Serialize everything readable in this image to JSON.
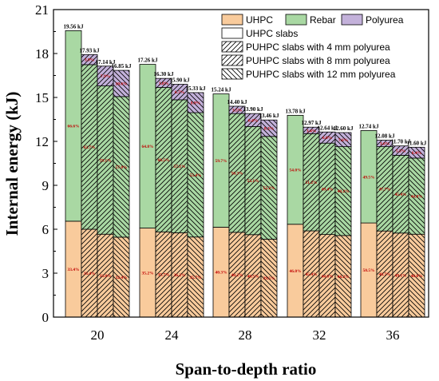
{
  "chart_data": {
    "type": "bar",
    "stacked": true,
    "title": "",
    "xlabel": "Span-to-depth ratio",
    "ylabel": "Internal energy (kJ)",
    "ylim": [
      0,
      21
    ],
    "yticks": [
      "0",
      "3",
      "6",
      "9",
      "12",
      "15",
      "18",
      "21"
    ],
    "categories": [
      "20",
      "24",
      "28",
      "32",
      "36"
    ],
    "slab_types": [
      "UHPC slabs",
      "PUHPC slabs with 4 mm polyurea",
      "PUHPC slabs with 8 mm polyurea",
      "PUHPC slabs with 12 mm polyurea"
    ],
    "components": [
      {
        "name": "UHPC",
        "color": "#f9cb9c"
      },
      {
        "name": "Rebar",
        "color": "#a9d8a3"
      },
      {
        "name": "Polyurea",
        "color": "#c3b1da"
      }
    ],
    "groups": [
      {
        "category": "20",
        "bars": [
          {
            "total": 19.56,
            "total_label": "19.56 kJ",
            "uhpc": 6.55,
            "rebar": 13.01,
            "polyurea": 0,
            "uhpc_pct": "33.4%",
            "rebar_pct": "66.6%",
            "poly_pct": ""
          },
          {
            "total": 17.93,
            "total_label": "17.93 kJ",
            "uhpc": 6.0,
            "rebar": 11.24,
            "polyurea": 0.69,
            "uhpc_pct": "33.4%",
            "rebar_pct": "62.7%",
            "poly_pct": "3.9%"
          },
          {
            "total": 17.14,
            "total_label": "17.14 kJ",
            "uhpc": 5.66,
            "rebar": 10.13,
            "polyurea": 1.35,
            "uhpc_pct": "33.0%",
            "rebar_pct": "59.1%",
            "poly_pct": "7.9%"
          },
          {
            "total": 16.85,
            "total_label": "16.85 kJ",
            "uhpc": 5.46,
            "rebar": 9.6,
            "polyurea": 1.79,
            "uhpc_pct": "32.4%",
            "rebar_pct": "57.0%",
            "poly_pct": "10.6%"
          }
        ]
      },
      {
        "category": "24",
        "bars": [
          {
            "total": 17.26,
            "total_label": "17.26 kJ",
            "uhpc": 6.08,
            "rebar": 11.18,
            "polyurea": 0,
            "uhpc_pct": "35.2%",
            "rebar_pct": "64.8%",
            "poly_pct": ""
          },
          {
            "total": 16.3,
            "total_label": "16.30 kJ",
            "uhpc": 5.82,
            "rebar": 9.86,
            "polyurea": 0.62,
            "uhpc_pct": "35.7%",
            "rebar_pct": "60.5%",
            "poly_pct": "3.8%"
          },
          {
            "total": 15.9,
            "total_label": "15.90 kJ",
            "uhpc": 5.76,
            "rebar": 9.08,
            "polyurea": 1.06,
            "uhpc_pct": "36.2%",
            "rebar_pct": "57.1%",
            "poly_pct": "6.7%"
          },
          {
            "total": 15.33,
            "total_label": "15.33 kJ",
            "uhpc": 5.47,
            "rebar": 8.49,
            "polyurea": 1.37,
            "uhpc_pct": "35.7%",
            "rebar_pct": "55.4%",
            "poly_pct": "8.9%"
          }
        ]
      },
      {
        "category": "28",
        "bars": [
          {
            "total": 15.24,
            "total_label": "15.24 kJ",
            "uhpc": 6.14,
            "rebar": 9.1,
            "polyurea": 0,
            "uhpc_pct": "40.3%",
            "rebar_pct": "59.7%",
            "poly_pct": ""
          },
          {
            "total": 14.4,
            "total_label": "14.40 kJ",
            "uhpc": 5.79,
            "rebar": 8.11,
            "polyurea": 0.5,
            "uhpc_pct": "40.2%",
            "rebar_pct": "56.3%",
            "poly_pct": "3.5%"
          },
          {
            "total": 13.9,
            "total_label": "13.90 kJ",
            "uhpc": 5.63,
            "rebar": 7.38,
            "polyurea": 0.89,
            "uhpc_pct": "40.5%",
            "rebar_pct": "53.1%",
            "poly_pct": "6.4%"
          },
          {
            "total": 13.46,
            "total_label": "13.46 kJ",
            "uhpc": 5.32,
            "rebar": 7.02,
            "polyurea": 1.12,
            "uhpc_pct": "39.5%",
            "rebar_pct": "52.2%",
            "poly_pct": "8.3%"
          }
        ]
      },
      {
        "category": "32",
        "bars": [
          {
            "total": 13.78,
            "total_label": "13.78 kJ",
            "uhpc": 6.34,
            "rebar": 7.44,
            "polyurea": 0,
            "uhpc_pct": "46.0%",
            "rebar_pct": "54.0%",
            "poly_pct": ""
          },
          {
            "total": 12.97,
            "total_label": "12.97 kJ",
            "uhpc": 5.89,
            "rebar": 6.64,
            "polyurea": 0.44,
            "uhpc_pct": "45.4%",
            "rebar_pct": "51.2%",
            "poly_pct": "3.4%"
          },
          {
            "total": 12.64,
            "total_label": "12.64 kJ",
            "uhpc": 5.64,
            "rebar": 6.24,
            "polyurea": 0.76,
            "uhpc_pct": "44.6%",
            "rebar_pct": "49.4%",
            "poly_pct": "6.0%"
          },
          {
            "total": 12.6,
            "total_label": "12.60 kJ",
            "uhpc": 5.57,
            "rebar": 6.07,
            "polyurea": 0.96,
            "uhpc_pct": "44.2%",
            "rebar_pct": "48.2%",
            "poly_pct": "7.6%"
          }
        ]
      },
      {
        "category": "36",
        "bars": [
          {
            "total": 12.74,
            "total_label": "12.74 kJ",
            "uhpc": 6.43,
            "rebar": 6.31,
            "polyurea": 0,
            "uhpc_pct": "50.5%",
            "rebar_pct": "49.5%",
            "poly_pct": ""
          },
          {
            "total": 12.08,
            "total_label": "12.08 kJ",
            "uhpc": 5.88,
            "rebar": 5.76,
            "polyurea": 0.44,
            "uhpc_pct": "48.7%",
            "rebar_pct": "47.7%",
            "poly_pct": "3.6%"
          },
          {
            "total": 11.7,
            "total_label": "11.70 kJ",
            "uhpc": 5.74,
            "rebar": 5.31,
            "polyurea": 0.64,
            "uhpc_pct": "49.1%",
            "rebar_pct": "45.4%",
            "poly_pct": "5.5%"
          },
          {
            "total": 11.6,
            "total_label": "11.60 kJ",
            "uhpc": 5.66,
            "rebar": 5.2,
            "polyurea": 0.74,
            "uhpc_pct": "48.8%",
            "rebar_pct": "44.8%",
            "poly_pct": "6.4%"
          }
        ]
      }
    ],
    "legend_position": "top-right",
    "grid": false
  }
}
